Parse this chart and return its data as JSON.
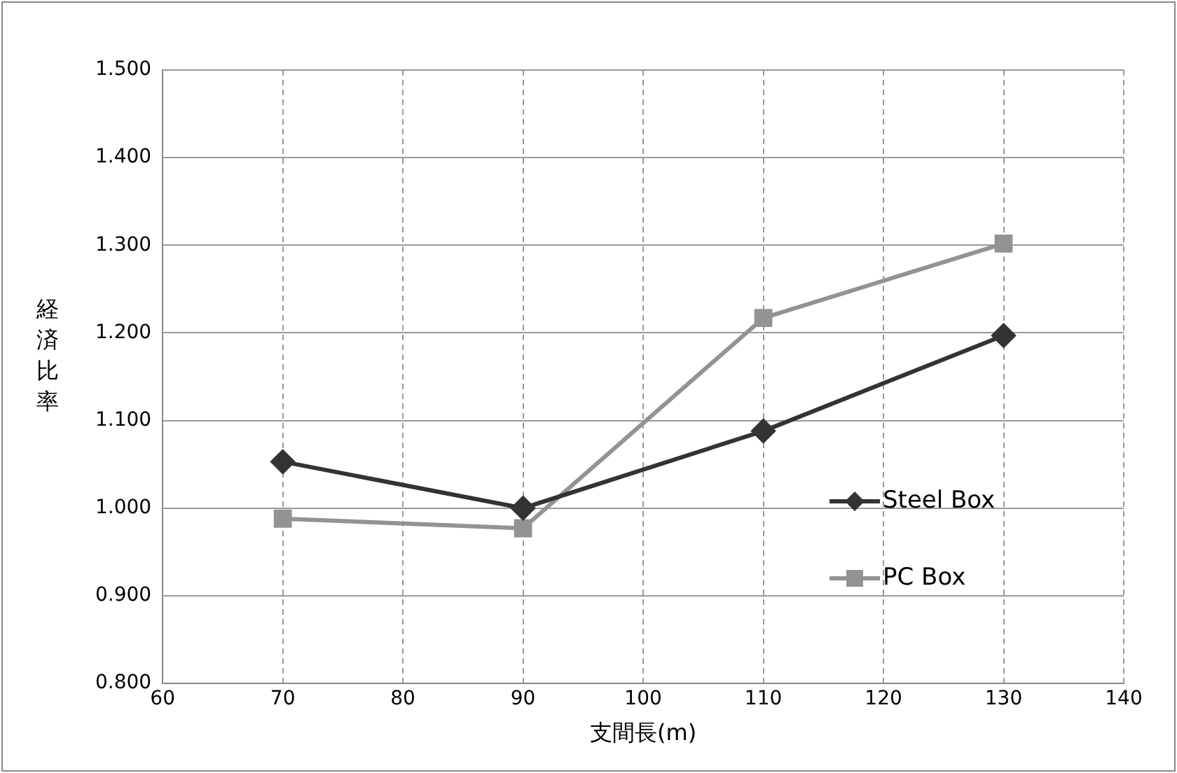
{
  "chart_data": {
    "type": "line",
    "xlabel": "支間長(m)",
    "ylabel": "経済比率",
    "x": [
      70,
      90,
      110,
      130
    ],
    "series": [
      {
        "name": "Steel Box",
        "color": "#333333",
        "marker": "diamond",
        "values": [
          1.053,
          1.0,
          1.088,
          1.197
        ]
      },
      {
        "name": "PC Box",
        "color": "#939393",
        "marker": "square",
        "values": [
          0.988,
          0.977,
          1.217,
          1.302
        ]
      }
    ],
    "xlim": [
      60,
      140
    ],
    "xticks": [
      60,
      70,
      80,
      90,
      100,
      110,
      120,
      130,
      140
    ],
    "ylim": [
      0.8,
      1.5
    ],
    "yticks": [
      {
        "value": 0.8,
        "label": "0.800"
      },
      {
        "value": 0.9,
        "label": "0.900"
      },
      {
        "value": 1.0,
        "label": "1.000"
      },
      {
        "value": 1.1,
        "label": "1.100"
      },
      {
        "value": 1.2,
        "label": "1.200"
      },
      {
        "value": 1.3,
        "label": "1.300"
      },
      {
        "value": 1.4,
        "label": "1.400"
      },
      {
        "value": 1.5,
        "label": "1.500"
      }
    ],
    "grid": true,
    "legend": "bottom right",
    "line_style": "solid"
  }
}
